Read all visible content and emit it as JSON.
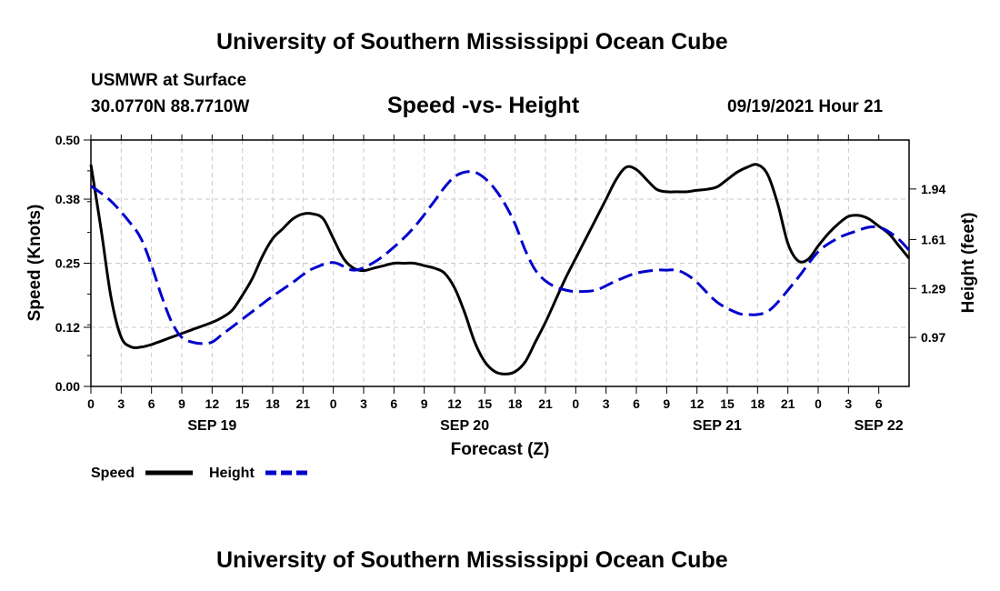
{
  "page": {
    "top_title": "University of Southern Mississippi Ocean Cube",
    "bottom_title": "University of Southern Mississippi Ocean Cube",
    "station": "USMWR at Surface",
    "coords": "30.0770N  88.7710W",
    "datetime": "09/19/2021 Hour 21"
  },
  "chart_data": {
    "type": "line",
    "title": "Speed -vs- Height",
    "xlabel": "Forecast (Z)",
    "ylabel": "Speed (Knots)",
    "y2label": "Height (feet)",
    "ylim": [
      0,
      0.5
    ],
    "y2lim": [
      0.65,
      2.26
    ],
    "y_ticks": [
      "0.00",
      "0.12",
      "0.25",
      "0.38",
      "0.50"
    ],
    "y2_ticks": [
      {
        "label": "0.97",
        "value": 0.97
      },
      {
        "label": "1.29",
        "value": 1.29
      },
      {
        "label": "1.61",
        "value": 1.61
      },
      {
        "label": "1.94",
        "value": 1.94
      }
    ],
    "x_range_hours": [
      0,
      81
    ],
    "x_tick_labels": [
      "0",
      "3",
      "6",
      "9",
      "12",
      "15",
      "18",
      "21",
      "0",
      "3",
      "6",
      "9",
      "12",
      "15",
      "18",
      "21",
      "0",
      "3",
      "6",
      "9",
      "12",
      "15",
      "18",
      "21",
      "0",
      "3",
      "6"
    ],
    "date_labels": [
      {
        "label": "SEP 19",
        "hour": 12
      },
      {
        "label": "SEP 20",
        "hour": 37
      },
      {
        "label": "SEP 21",
        "hour": 62
      },
      {
        "label": "SEP 22",
        "hour": 78
      }
    ],
    "grid": true,
    "legend": [
      "Speed",
      "Height"
    ],
    "series": [
      {
        "name": "Speed",
        "axis": "left",
        "color": "#000000",
        "dash": "solid",
        "x": [
          0,
          1,
          2,
          3,
          4,
          5,
          6,
          8,
          10,
          12,
          13,
          14,
          15,
          16,
          17,
          18,
          19,
          20,
          21,
          22,
          23,
          24,
          25,
          26,
          27,
          28,
          29,
          30,
          31,
          32,
          33,
          34,
          35,
          36,
          37,
          38,
          39,
          40,
          41,
          42,
          43,
          44,
          45,
          46,
          47,
          48,
          49,
          50,
          51,
          52,
          53,
          54,
          55,
          56,
          57,
          58,
          59,
          60,
          61,
          62,
          63,
          64,
          65,
          66,
          67,
          68,
          69,
          70,
          71,
          72,
          73,
          74,
          75,
          76,
          77,
          78,
          79,
          80,
          81
        ],
        "values": [
          0.45,
          0.32,
          0.18,
          0.1,
          0.08,
          0.08,
          0.085,
          0.1,
          0.115,
          0.13,
          0.14,
          0.155,
          0.185,
          0.22,
          0.265,
          0.3,
          0.32,
          0.34,
          0.35,
          0.35,
          0.34,
          0.3,
          0.26,
          0.24,
          0.235,
          0.24,
          0.245,
          0.25,
          0.25,
          0.25,
          0.245,
          0.24,
          0.23,
          0.2,
          0.15,
          0.09,
          0.05,
          0.03,
          0.025,
          0.03,
          0.05,
          0.09,
          0.13,
          0.175,
          0.22,
          0.26,
          0.3,
          0.34,
          0.38,
          0.42,
          0.445,
          0.44,
          0.42,
          0.4,
          0.395,
          0.395,
          0.395,
          0.398,
          0.4,
          0.405,
          0.42,
          0.435,
          0.445,
          0.45,
          0.43,
          0.37,
          0.29,
          0.255,
          0.258,
          0.285,
          0.31,
          0.33,
          0.345,
          0.347,
          0.34,
          0.325,
          0.31,
          0.285,
          0.26
        ]
      },
      {
        "name": "Height",
        "axis": "right",
        "color": "#0000cc",
        "dash": "dashed",
        "x": [
          0,
          2,
          4,
          5,
          6,
          7,
          8,
          9,
          10,
          11,
          12,
          13,
          14,
          16,
          18,
          20,
          21,
          22,
          24,
          26,
          28,
          30,
          32,
          34,
          35,
          36,
          37,
          38,
          39,
          40,
          41,
          42,
          43,
          44,
          45,
          46,
          47,
          48,
          50,
          52,
          54,
          56,
          57,
          58,
          59,
          60,
          62,
          64,
          65,
          66,
          67,
          68,
          70,
          72,
          74,
          76,
          77,
          78,
          79,
          80,
          81
        ],
        "values": [
          1.96,
          1.86,
          1.71,
          1.61,
          1.44,
          1.24,
          1.07,
          0.97,
          0.94,
          0.93,
          0.94,
          0.99,
          1.04,
          1.14,
          1.24,
          1.33,
          1.38,
          1.42,
          1.46,
          1.41,
          1.46,
          1.56,
          1.69,
          1.86,
          1.95,
          2.02,
          2.05,
          2.05,
          2.01,
          1.94,
          1.84,
          1.71,
          1.54,
          1.41,
          1.34,
          1.3,
          1.28,
          1.27,
          1.28,
          1.34,
          1.39,
          1.41,
          1.41,
          1.41,
          1.38,
          1.33,
          1.2,
          1.13,
          1.12,
          1.12,
          1.14,
          1.2,
          1.36,
          1.53,
          1.62,
          1.67,
          1.69,
          1.69,
          1.66,
          1.61,
          1.54
        ]
      }
    ]
  }
}
